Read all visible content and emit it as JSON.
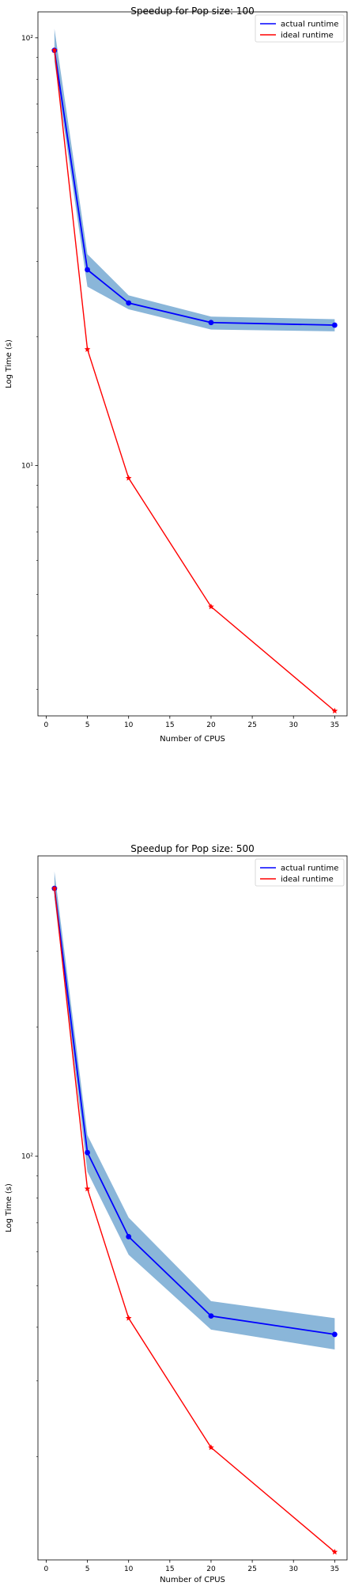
{
  "chart_data": [
    {
      "type": "line",
      "title": "Speedup for Pop size: 100",
      "xlabel": "Number of CPUS",
      "ylabel": "Log Time (s)",
      "yscale": "log",
      "xlim": [
        -1,
        36.5
      ],
      "ylim": [
        2.6,
        115
      ],
      "x_ticks": [
        0,
        5,
        10,
        15,
        20,
        25,
        30,
        35
      ],
      "y_ticks": [
        {
          "value": 10,
          "label": "10¹"
        },
        {
          "value": 100,
          "label": "10²"
        }
      ],
      "x": [
        1,
        5,
        10,
        20,
        35
      ],
      "series": [
        {
          "name": "actual runtime",
          "color": "#0000ff",
          "marker": "circle",
          "values": [
            93.5,
            28.7,
            24.0,
            21.6,
            21.3
          ],
          "band_lower": [
            88,
            26.2,
            23.2,
            20.8,
            20.6
          ],
          "band_upper": [
            105,
            31.2,
            25.0,
            22.3,
            22.0
          ]
        },
        {
          "name": "ideal runtime",
          "color": "#ff0000",
          "marker": "star",
          "values": [
            93.5,
            18.7,
            9.35,
            4.68,
            2.67
          ]
        }
      ],
      "band_color": "#8ab6d9",
      "legend": "top-right",
      "grid": false
    },
    {
      "type": "line",
      "title": "Speedup for Pop size: 500",
      "xlabel": "Number of CPUS",
      "ylabel": "Log Time (s)",
      "yscale": "log",
      "xlim": [
        -1,
        36.5
      ],
      "ylim": [
        11.5,
        500
      ],
      "x_ticks": [
        0,
        5,
        10,
        15,
        20,
        25,
        30,
        35
      ],
      "y_ticks": [
        {
          "value": 100,
          "label": "10²"
        }
      ],
      "x": [
        1,
        5,
        10,
        20,
        35
      ],
      "series": [
        {
          "name": "actual runtime",
          "color": "#0000ff",
          "marker": "circle",
          "values": [
            420,
            102,
            65,
            42.5,
            38.5
          ],
          "band_lower": [
            400,
            92,
            59,
            39.5,
            35.5
          ],
          "band_upper": [
            460,
            112,
            72,
            46,
            42
          ]
        },
        {
          "name": "ideal runtime",
          "color": "#ff0000",
          "marker": "star",
          "values": [
            420,
            84,
            42,
            21,
            12
          ]
        }
      ],
      "band_color": "#8ab6d9",
      "legend": "top-right",
      "grid": false
    }
  ]
}
